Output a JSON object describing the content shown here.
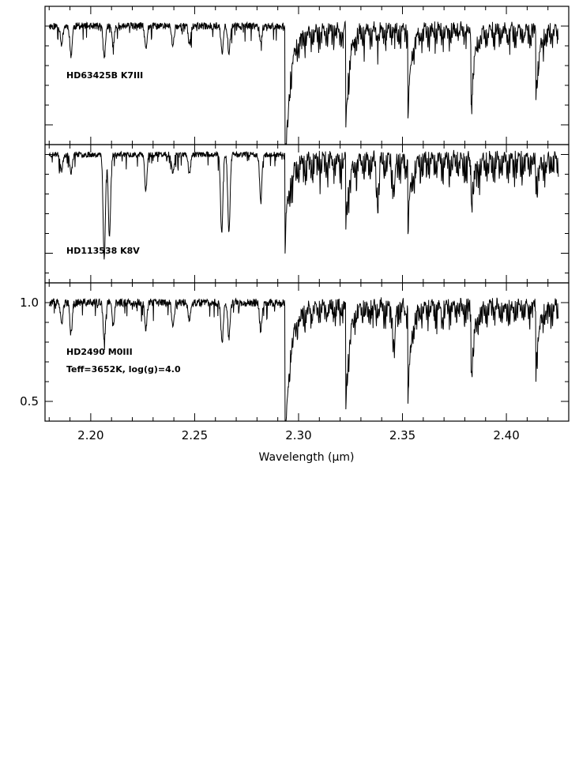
{
  "chart_data": {
    "type": "line",
    "xlabel": "Wavelength (μm)",
    "xlim": [
      2.178,
      2.43
    ],
    "xticks": [
      "2.20",
      "2.25",
      "2.30",
      "2.35",
      "2.40"
    ],
    "xtick_values": [
      2.2,
      2.25,
      2.3,
      2.35,
      2.4
    ],
    "grid": false,
    "panels": [
      {
        "labels": [
          "HD63425B  K7III"
        ],
        "ylim": [
          0.4,
          1.1
        ],
        "yticks": [],
        "spectrum": {
          "x_start": 2.18,
          "x_end": 2.425,
          "continuum": 1.0,
          "noise": 0.018,
          "seed": 11,
          "co_start": 2.2935,
          "co_drop": 0.42,
          "co_recover": 0.3,
          "co_bands": [
            [
              2.2935,
              0.53
            ],
            [
              2.3227,
              0.49
            ],
            [
              2.3525,
              0.43
            ],
            [
              2.383,
              0.38
            ],
            [
              2.4141,
              0.34
            ]
          ],
          "lines": [
            [
              2.186,
              0.09
            ],
            [
              2.1905,
              0.15
            ],
            [
              2.2065,
              0.16
            ],
            [
              2.2108,
              0.1
            ],
            [
              2.2265,
              0.12
            ],
            [
              2.2395,
              0.1
            ],
            [
              2.2475,
              0.09
            ],
            [
              2.2632,
              0.14
            ],
            [
              2.2665,
              0.13
            ],
            [
              2.2818,
              0.08
            ]
          ]
        }
      },
      {
        "labels": [
          "HD113538  K8V"
        ],
        "ylim": [
          0.35,
          1.05
        ],
        "yticks": [],
        "spectrum": {
          "x_start": 2.18,
          "x_end": 2.425,
          "continuum": 1.0,
          "noise": 0.014,
          "seed": 23,
          "co_start": 2.2935,
          "co_drop": 0.16,
          "co_recover": 0.4,
          "co_bands": [
            [
              2.2935,
              0.3
            ],
            [
              2.3227,
              0.32
            ],
            [
              2.3525,
              0.33
            ],
            [
              2.383,
              0.2
            ],
            [
              2.4141,
              0.12
            ]
          ],
          "lines": [
            [
              2.186,
              0.08
            ],
            [
              2.1905,
              0.1
            ],
            [
              2.2065,
              0.52
            ],
            [
              2.209,
              0.42
            ],
            [
              2.2265,
              0.18
            ],
            [
              2.2395,
              0.09
            ],
            [
              2.2475,
              0.1
            ],
            [
              2.263,
              0.4
            ],
            [
              2.2665,
              0.4
            ],
            [
              2.2818,
              0.24
            ],
            [
              2.338,
              0.2
            ],
            [
              2.346,
              0.15
            ]
          ]
        }
      },
      {
        "labels": [
          "HD2490  M0III",
          "Teff=3652K,  log(g)=4.0"
        ],
        "ylim": [
          0.4,
          1.1
        ],
        "yticks": [
          0.5,
          1.0
        ],
        "ytick_labels": [
          "0.5",
          "1.0"
        ],
        "spectrum": {
          "x_start": 2.18,
          "x_end": 2.425,
          "continuum": 1.0,
          "noise": 0.02,
          "seed": 37,
          "co_start": 2.2935,
          "co_drop": 0.4,
          "co_recover": 0.32,
          "co_bands": [
            [
              2.2935,
              0.55
            ],
            [
              2.3227,
              0.5
            ],
            [
              2.3525,
              0.48
            ],
            [
              2.383,
              0.36
            ],
            [
              2.4141,
              0.3
            ]
          ],
          "lines": [
            [
              2.186,
              0.12
            ],
            [
              2.1905,
              0.16
            ],
            [
              2.2065,
              0.2
            ],
            [
              2.2108,
              0.12
            ],
            [
              2.2265,
              0.13
            ],
            [
              2.2395,
              0.12
            ],
            [
              2.2475,
              0.1
            ],
            [
              2.2632,
              0.2
            ],
            [
              2.2665,
              0.18
            ],
            [
              2.2818,
              0.14
            ],
            [
              2.346,
              0.2
            ]
          ]
        }
      }
    ]
  }
}
